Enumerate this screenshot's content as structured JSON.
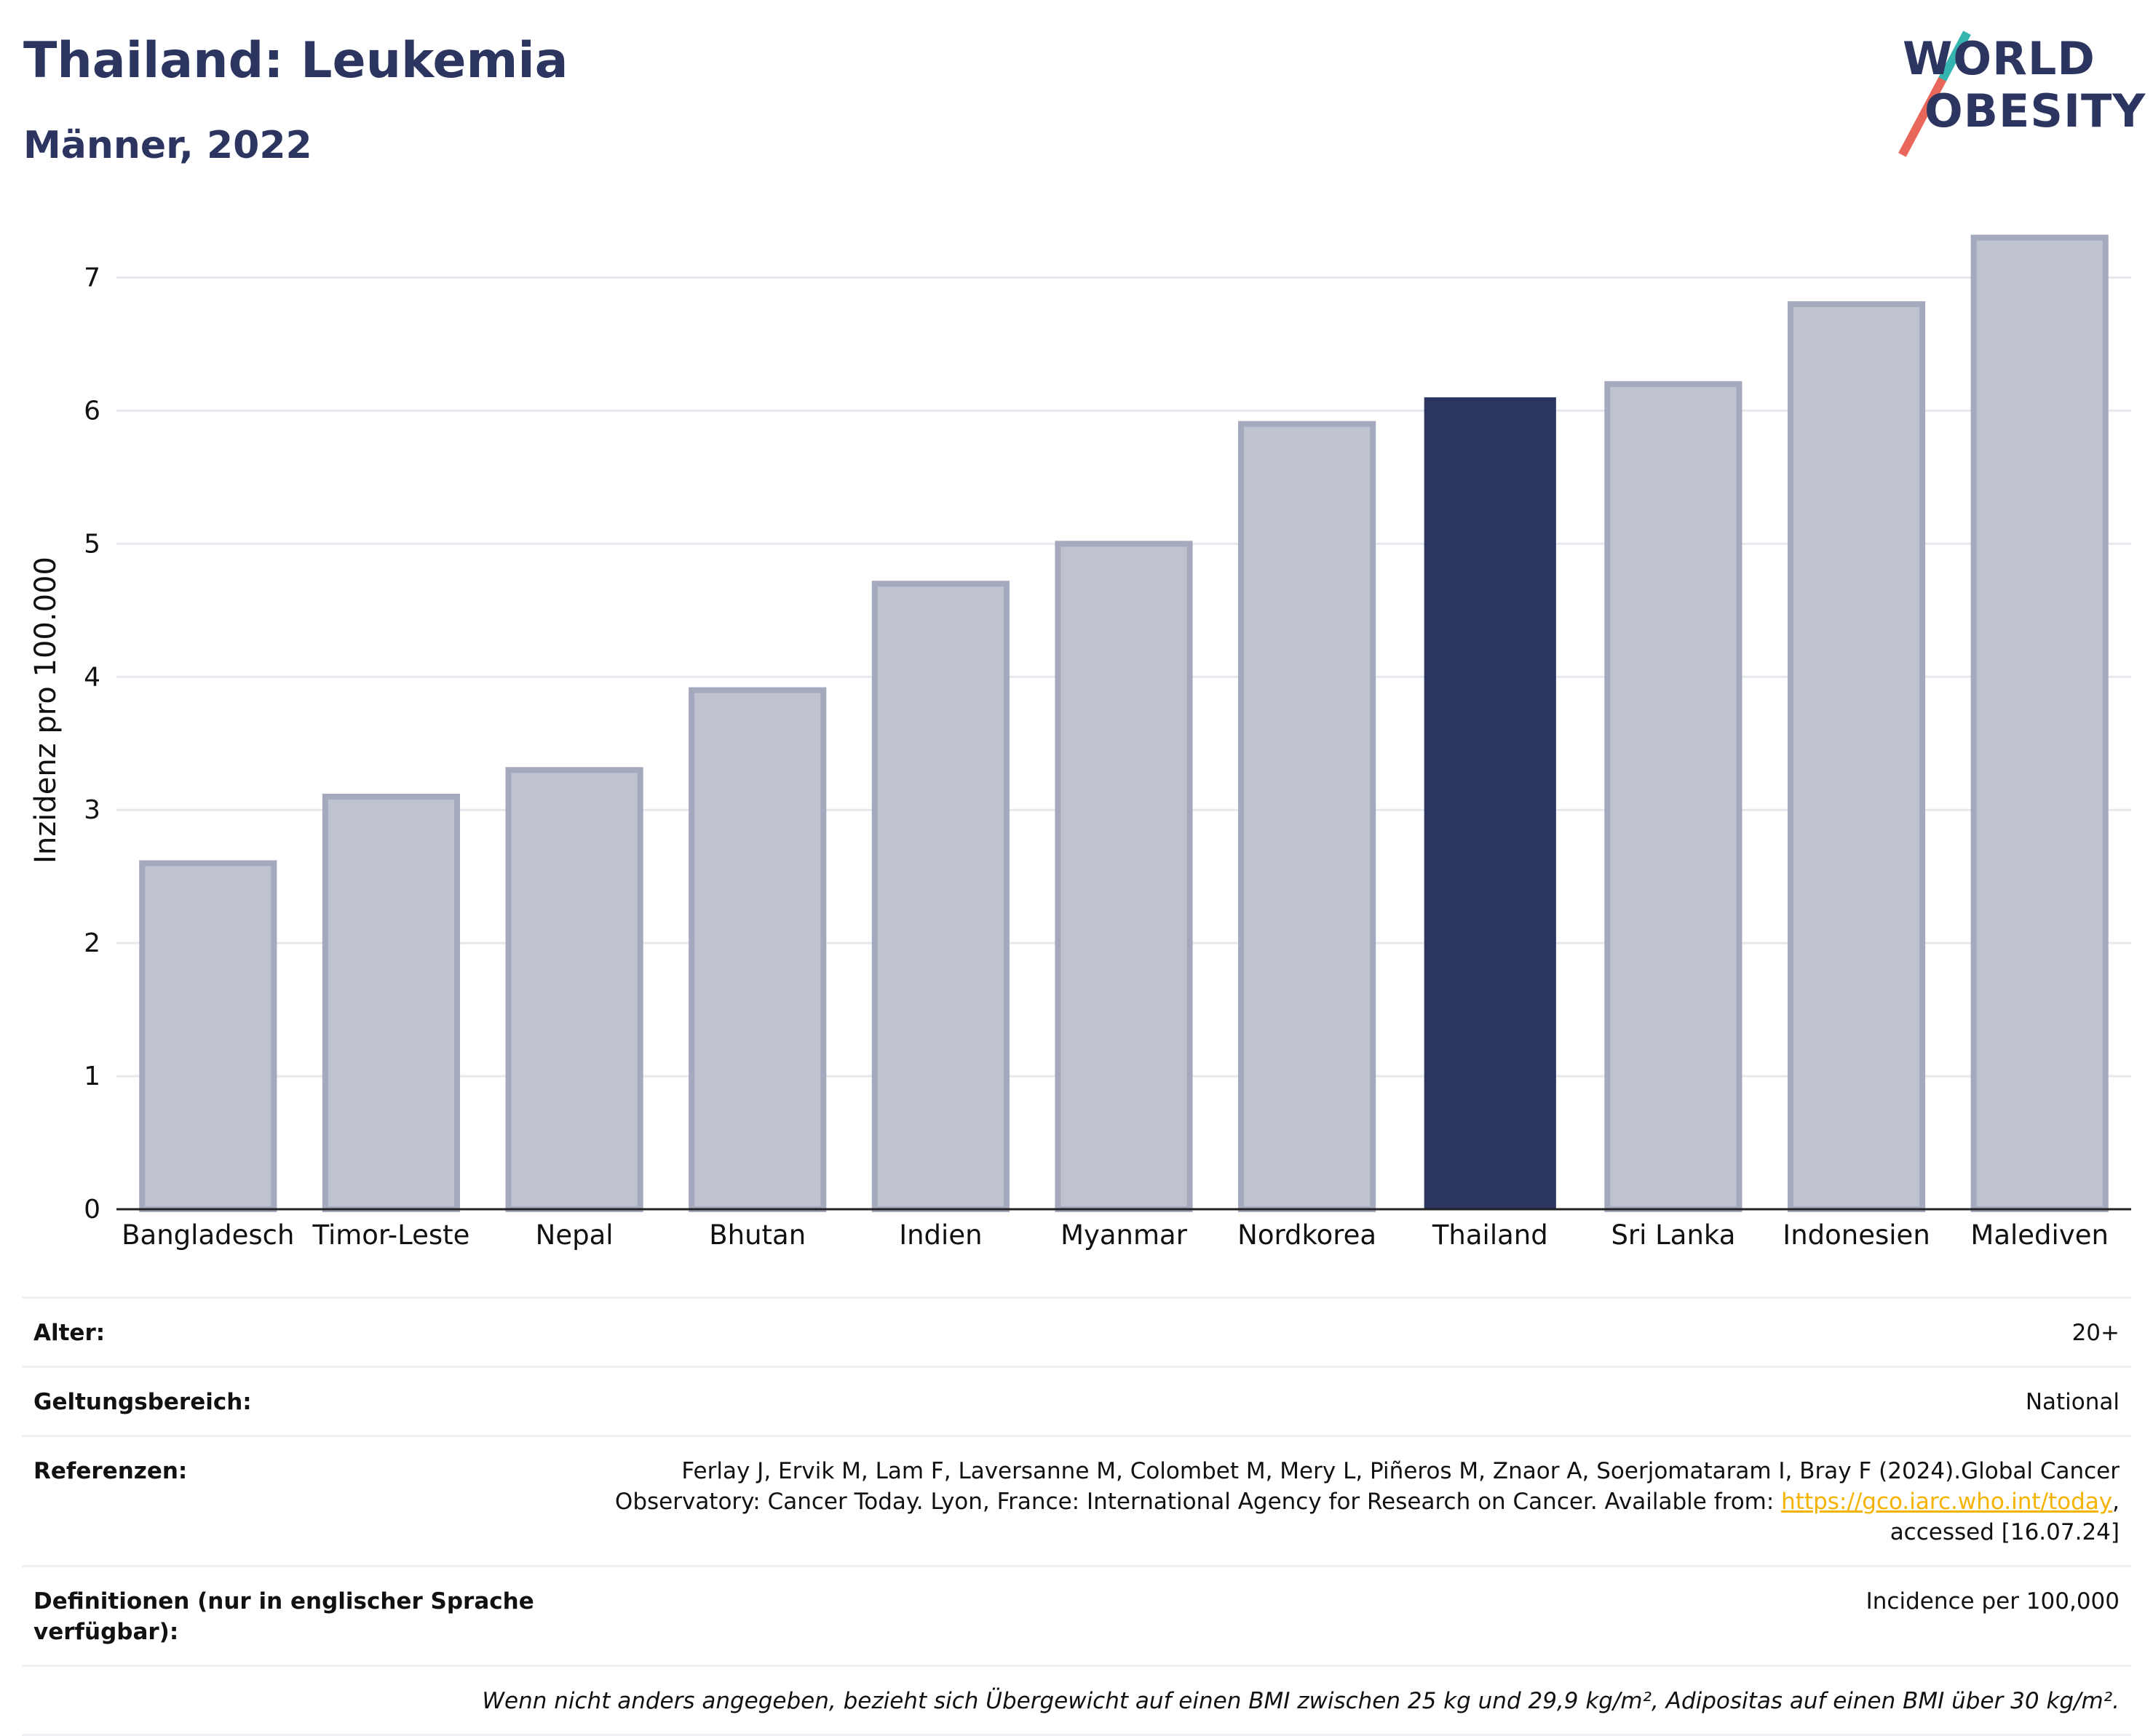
{
  "title": "Thailand: Leukemia",
  "subtitle": "Männer, 2022",
  "logo": {
    "line1": "WORLD",
    "line2": "OBESITY"
  },
  "colors": {
    "highlight": "#2b3560",
    "bar": "#bfc3d0",
    "bar_border": "#a4a9bd",
    "grid": "#e6e8ee",
    "axis": "#222222"
  },
  "chart_data": {
    "type": "bar",
    "ylabel": "Inzidenz pro 100.000",
    "xlabel": "",
    "ylim": [
      0,
      7.5
    ],
    "yticks": [
      0,
      1,
      2,
      3,
      4,
      5,
      6,
      7
    ],
    "grid": true,
    "categories": [
      "Bangladesch",
      "Timor-Leste",
      "Nepal",
      "Bhutan",
      "Indien",
      "Myanmar",
      "Nordkorea",
      "Thailand",
      "Sri Lanka",
      "Indonesien",
      "Malediven"
    ],
    "values": [
      2.6,
      3.1,
      3.3,
      3.9,
      4.7,
      5.0,
      5.9,
      6.1,
      6.2,
      6.8,
      7.3
    ],
    "highlight": "Thailand"
  },
  "meta": {
    "age_label": "Alter:",
    "age_value": "20+",
    "scope_label": "Geltungsbereich:",
    "scope_value": "National",
    "refs_label": "Referenzen:",
    "refs_text_1": "Ferlay J, Ervik M, Lam F, Laversanne M, Colombet M, Mery L, Piñeros M, Znaor A, Soerjomataram I, Bray F (2024).Global Cancer Observatory: Cancer Today. Lyon, France: International Agency for Research on Cancer. Available from: ",
    "refs_link": "https://gco.iarc.who.int/today",
    "refs_text_2": ", accessed [16.07.24]",
    "def_label": "Definitionen (nur in englischer Sprache verfügbar):",
    "def_value": "Incidence per 100,000",
    "note": "Wenn nicht anders angegeben, bezieht sich Übergewicht auf einen BMI zwischen 25 kg und 29,9 kg/m², Adipositas auf einen BMI über 30 kg/m²."
  }
}
